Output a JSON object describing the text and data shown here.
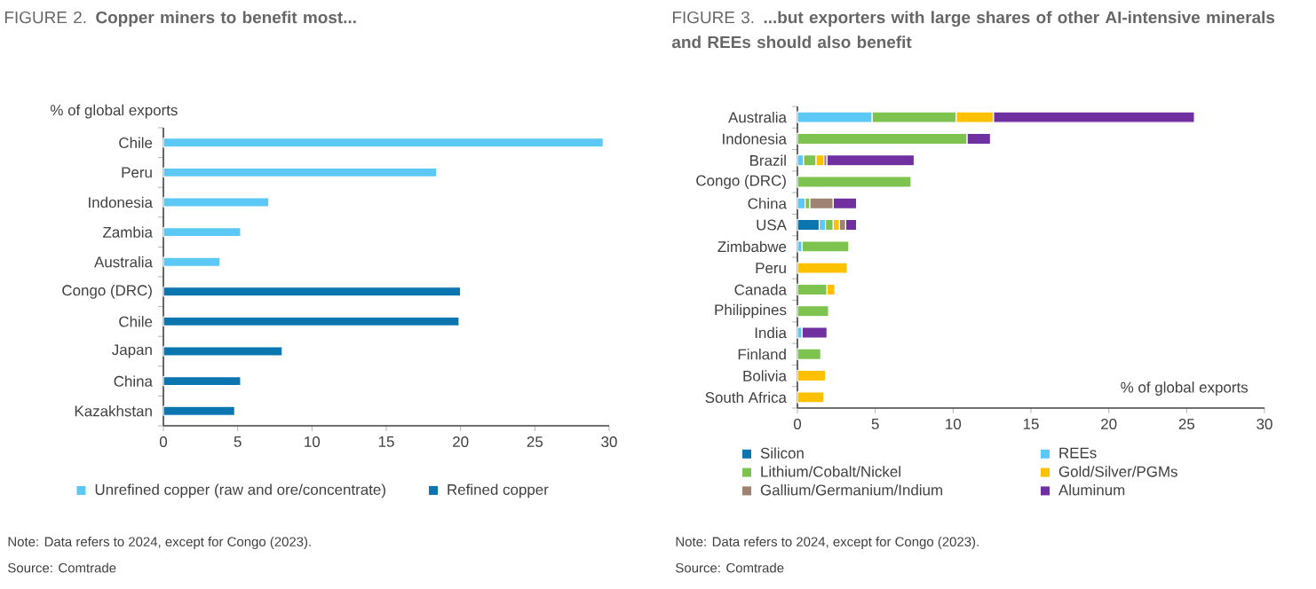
{
  "chart_data": [
    {
      "type": "bar",
      "orientation": "horizontal",
      "title": "FIGURE 2. **Copper miners to benefit most...**",
      "xlabel": "% of global exports",
      "categories": [
        "Chile",
        "Peru",
        "Indonesia",
        "Zambia",
        "Australia",
        "Congo (DRC)",
        "Chile",
        "Japan",
        "China",
        "Kazakhstan"
      ],
      "series": [
        {
          "name": "Unrefined copper (raw and ore/concentrate)",
          "color": "#5bc8f5",
          "values": [
            29.6,
            18.4,
            7.1,
            5.2,
            3.8,
            null,
            null,
            null,
            null,
            null
          ]
        },
        {
          "name": "Refined copper",
          "color": "#0b75b0",
          "values": [
            null,
            null,
            null,
            null,
            null,
            20.0,
            19.9,
            8.0,
            5.2,
            4.8
          ]
        }
      ],
      "xlim": [
        0,
        30
      ],
      "xticks": [
        0,
        5,
        10,
        15,
        20,
        25,
        30
      ],
      "legend": "bottom",
      "annotations": [
        "Note: Data refers to 2024, except for Congo (2023).",
        "Source: Comtrade"
      ]
    },
    {
      "type": "bar",
      "orientation": "horizontal",
      "stacked": true,
      "title": "FIGURE 3. **...but exporters with large shares of other AI-intensive minerals and REEs should also benefit**",
      "xlabel": "% of global exports",
      "categories": [
        "Australia",
        "Indonesia",
        "Brazil",
        "Congo (DRC)",
        "China",
        "USA",
        "Zimbabwe",
        "Peru",
        "Canada",
        "Philippines",
        "India",
        "Finland",
        "Bolivia",
        "South Africa"
      ],
      "series": [
        {
          "name": "Silicon",
          "color": "#0b75b0",
          "values": [
            null,
            null,
            null,
            null,
            null,
            1.4,
            null,
            null,
            null,
            null,
            null,
            null,
            null,
            null
          ]
        },
        {
          "name": "REEs",
          "color": "#5bc8f5",
          "values": [
            4.8,
            null,
            0.4,
            null,
            0.5,
            0.4,
            0.3,
            null,
            null,
            null,
            0.3,
            null,
            null,
            null
          ]
        },
        {
          "name": "Lithium/Cobalt/Nickel",
          "color": "#7ec34f",
          "values": [
            5.4,
            10.9,
            0.8,
            7.3,
            0.3,
            0.5,
            3.0,
            null,
            1.9,
            2.0,
            null,
            1.5,
            null,
            null
          ]
        },
        {
          "name": "Gold/Silver/PGMs",
          "color": "#ffc000",
          "values": [
            2.4,
            null,
            0.5,
            null,
            null,
            0.4,
            null,
            3.2,
            0.5,
            null,
            null,
            null,
            1.8,
            1.7
          ]
        },
        {
          "name": "Gallium/Germanium/Indium",
          "color": "#a08272",
          "values": [
            null,
            null,
            0.2,
            null,
            1.5,
            0.4,
            null,
            null,
            null,
            null,
            null,
            null,
            null,
            null
          ]
        },
        {
          "name": "Aluminum",
          "color": "#7030a0",
          "values": [
            12.9,
            1.5,
            5.6,
            null,
            1.5,
            0.7,
            null,
            null,
            null,
            null,
            1.6,
            null,
            null,
            null
          ]
        }
      ],
      "xlim": [
        0,
        30
      ],
      "xticks": [
        0,
        5,
        10,
        15,
        20,
        25,
        30
      ],
      "legend": "bottom",
      "annotations": [
        "Note: Data refers to 2024, except for Congo (2023).",
        "Source: Comtrade"
      ]
    }
  ]
}
